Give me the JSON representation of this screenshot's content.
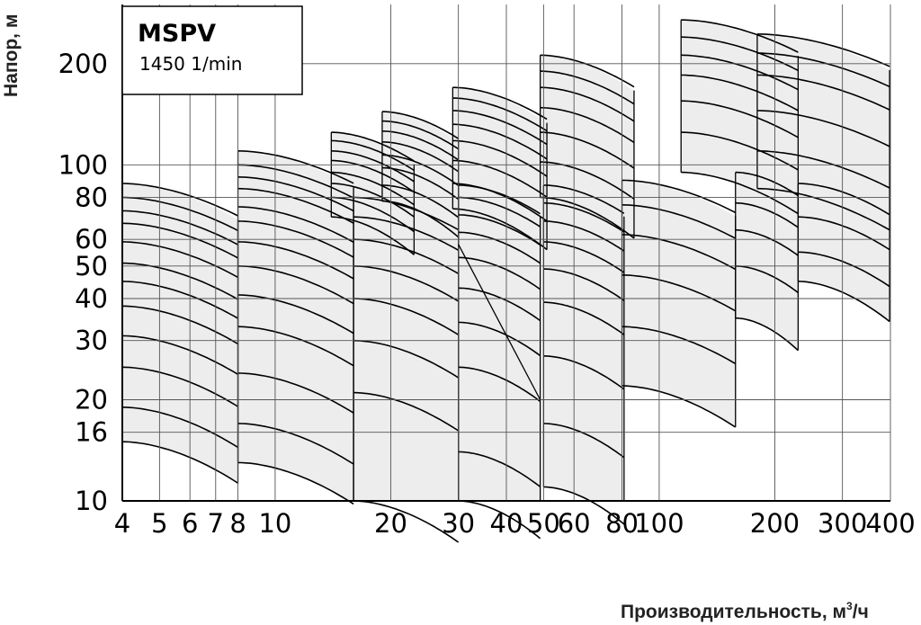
{
  "chart_data": {
    "type": "area",
    "title": "MSPV",
    "subtitle": "1450 1/min",
    "xlabel": "Производительность, м",
    "xlabel_sup": "3",
    "xlabel_suffix": "/ч",
    "ylabel": "Напор, м",
    "x_scale": "log",
    "y_scale": "log",
    "xlim": [
      4,
      400
    ],
    "ylim": [
      10,
      300
    ],
    "x_ticks": [
      4,
      5,
      6,
      7,
      8,
      10,
      20,
      30,
      40,
      50,
      60,
      80,
      100,
      200,
      300,
      400
    ],
    "x_tick_labels": [
      "4",
      "5",
      "6",
      "7",
      "8",
      "10",
      "20",
      "30",
      "40",
      "50",
      "60",
      "80",
      "100",
      "200",
      "300",
      "400"
    ],
    "y_ticks": [
      10,
      16,
      20,
      30,
      40,
      50,
      60,
      80,
      100,
      200
    ],
    "y_tick_labels": [
      "10",
      "16",
      "20",
      "30",
      "40",
      "50",
      "60",
      "80",
      "100",
      "200"
    ],
    "grid": true,
    "series": [
      {
        "x": [
          4,
          8
        ],
        "top_curves": [
          88,
          80,
          73,
          67,
          59,
          51,
          45,
          38,
          31,
          25,
          19
        ],
        "bottom": [
          15
        ]
      },
      {
        "x": [
          8,
          16
        ],
        "top_curves": [
          110,
          100,
          92,
          85,
          75,
          68,
          59,
          50,
          41,
          33,
          24,
          17
        ],
        "bottom": [
          13
        ]
      },
      {
        "x": [
          14,
          23
        ],
        "top_curves": [
          125,
          118,
          110,
          103,
          95,
          88,
          80
        ],
        "bottom": [
          70
        ]
      },
      {
        "x": [
          16,
          30
        ],
        "top_curves": [
          80,
          70,
          60,
          50,
          40,
          30,
          21
        ],
        "bottom": [
          10
        ]
      },
      {
        "x": [
          19,
          30
        ],
        "top_curves": [
          144,
          135,
          126,
          117,
          107,
          98,
          87
        ],
        "bottom": [
          78
        ]
      },
      {
        "x": [
          30,
          49
        ],
        "top_curves": [
          87,
          80,
          71,
          63,
          53,
          43,
          34,
          25,
          14
        ],
        "bottom": [
          10
        ]
      },
      {
        "x": [
          29,
          51
        ],
        "top_curves": [
          170,
          158,
          145,
          132,
          118,
          103,
          88
        ],
        "bottom": [
          74
        ]
      },
      {
        "x": [
          50,
          81
        ],
        "top_curves": [
          87,
          77,
          68,
          59,
          49,
          39,
          27,
          17
        ],
        "bottom": [
          11
        ]
      },
      {
        "x": [
          49,
          86
        ],
        "top_curves": [
          212,
          190,
          170,
          148,
          125,
          102
        ],
        "bottom": [
          80
        ]
      },
      {
        "x": [
          80,
          158
        ],
        "top_curves": [
          90,
          76,
          62,
          47,
          33
        ],
        "bottom": [
          22
        ]
      },
      {
        "x": [
          114,
          230
        ],
        "top_curves": [
          270,
          240,
          212,
          185,
          155,
          125
        ],
        "bottom": [
          95
        ]
      },
      {
        "x": [
          158,
          230
        ],
        "top_curves": [
          95,
          77,
          64,
          50
        ],
        "bottom": [
          35
        ]
      },
      {
        "x": [
          180,
          398
        ],
        "top_curves": [
          245,
          215,
          185,
          145,
          110
        ],
        "bottom": [
          85
        ]
      },
      {
        "x": [
          230,
          398
        ],
        "top_curves": [
          88,
          70,
          55
        ],
        "bottom": [
          45
        ]
      }
    ],
    "annotations": [
      {
        "type": "line",
        "from": [
          30,
          58
        ],
        "to": [
          49,
          20
        ]
      }
    ]
  }
}
